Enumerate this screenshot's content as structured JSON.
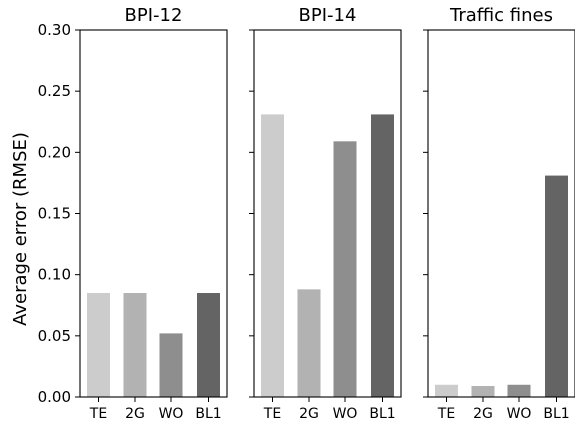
{
  "chart_data": {
    "type": "bar",
    "ylabel": "Average error (RMSE)",
    "ylim": [
      0,
      0.3
    ],
    "yticks": [
      "0.00",
      "0.05",
      "0.10",
      "0.15",
      "0.20",
      "0.25",
      "0.30"
    ],
    "shared_y": true,
    "grid": false,
    "categories": [
      "TE",
      "2G",
      "WO",
      "BL1"
    ],
    "bar_colors": [
      "#cccccc",
      "#b2b2b2",
      "#8e8e8e",
      "#646464"
    ],
    "panels": [
      {
        "title": "BPI-12",
        "values": [
          0.085,
          0.085,
          0.052,
          0.085
        ]
      },
      {
        "title": "BPI-14",
        "values": [
          0.231,
          0.088,
          0.209,
          0.231
        ]
      },
      {
        "title": "Traffic fines",
        "values": [
          0.01,
          0.009,
          0.01,
          0.181
        ]
      }
    ]
  }
}
